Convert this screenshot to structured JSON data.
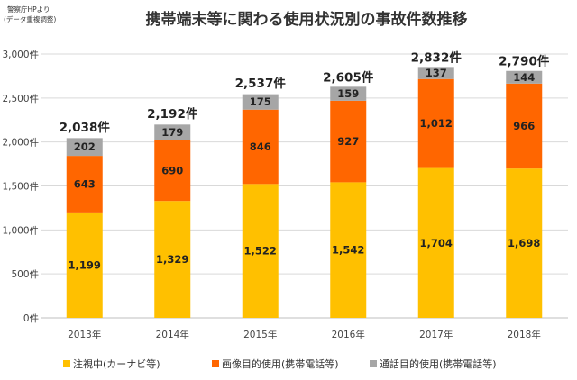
{
  "source_note": [
    "警察庁HPより",
    "(データ重複調整)"
  ],
  "chart_data": {
    "type": "bar",
    "stacked": true,
    "title": "携帯端末等に関わる使用状況別の事故件数推移",
    "xlabel": "",
    "ylabel": "",
    "ylim": [
      0,
      3000
    ],
    "yticks": [
      0,
      500,
      1000,
      1500,
      2000,
      2500,
      3000
    ],
    "ytick_labels": [
      "0件",
      "500件",
      "1,000件",
      "1,500件",
      "2,000件",
      "2,500件",
      "3,000件"
    ],
    "grid": true,
    "legend_position": "bottom",
    "categories": [
      "2013年",
      "2014年",
      "2015年",
      "2016年",
      "2017年",
      "2018年"
    ],
    "series": [
      {
        "name": "注視中(カーナビ等)",
        "color": "#FFC000",
        "values": [
          1199,
          1329,
          1522,
          1542,
          1704,
          1698
        ],
        "labels": [
          "1,199",
          "1,329",
          "1,522",
          "1,542",
          "1,704",
          "1,698"
        ]
      },
      {
        "name": "画像目的使用(携帯電話等)",
        "color": "#FF6600",
        "values": [
          643,
          690,
          846,
          927,
          1012,
          966
        ],
        "labels": [
          "643",
          "690",
          "846",
          "927",
          "1,012",
          "966"
        ]
      },
      {
        "name": "通話目的使用(携帯電話等)",
        "color": "#A6A6A6",
        "values": [
          202,
          179,
          175,
          159,
          137,
          144
        ],
        "labels": [
          "202",
          "179",
          "175",
          "159",
          "137",
          "144"
        ]
      }
    ],
    "totals": [
      2038,
      2192,
      2537,
      2605,
      2832,
      2790
    ],
    "total_labels": [
      "2,038件",
      "2,192件",
      "2,537件",
      "2,605件",
      "2,832件",
      "2,790件"
    ]
  }
}
